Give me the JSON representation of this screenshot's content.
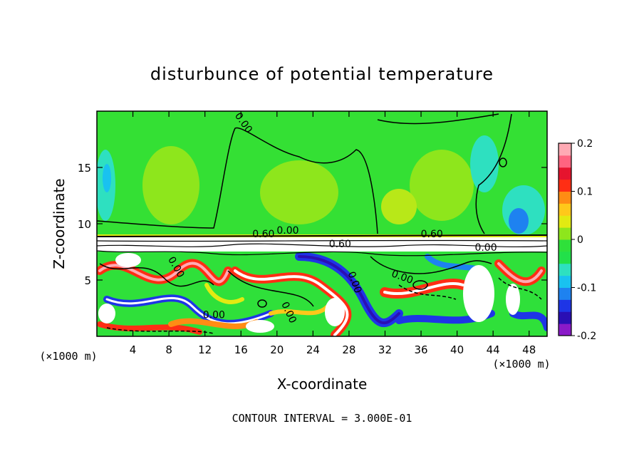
{
  "chart_data": {
    "type": "heatmap",
    "title": "disturbunce of potential temperature",
    "xlabel": "X-coordinate",
    "ylabel": "Z-coordinate",
    "x_unit_label": "(×1000 m)",
    "y_unit_label": "(×1000 m)",
    "xlim": [
      0,
      50
    ],
    "ylim": [
      0,
      20
    ],
    "x_ticks": [
      4,
      8,
      12,
      16,
      20,
      24,
      28,
      32,
      36,
      40,
      44,
      48
    ],
    "y_ticks": [
      5,
      10,
      15
    ],
    "colorbar": {
      "range": [
        -0.2,
        0.2
      ],
      "ticks": [
        "0.2",
        "0.1",
        "0",
        "-0.1",
        "-0.2"
      ],
      "tick_values": [
        0.2,
        0.1,
        0,
        -0.1,
        -0.2
      ],
      "colors": [
        "#8a1ac8",
        "#2a0fb4",
        "#1e35e6",
        "#1e82f0",
        "#19c2f0",
        "#2ee0c0",
        "#22e04a",
        "#2fe03a",
        "#8ee61c",
        "#e2ea12",
        "#ffc81a",
        "#ff8c14",
        "#ff2e14",
        "#e6142e",
        "#ff6480",
        "#ffaab4"
      ]
    },
    "contour_labels": [
      {
        "text": "0.00",
        "x": 16.0,
        "z": 18.8,
        "rotate": 55
      },
      {
        "text": "0.60",
        "x": 18.5,
        "z": 8.8,
        "rotate": 0
      },
      {
        "text": "0.00",
        "x": 21.2,
        "z": 9.1,
        "rotate": 0
      },
      {
        "text": "0.60",
        "x": 37.2,
        "z": 8.8,
        "rotate": 0
      },
      {
        "text": "0.60",
        "x": 27.0,
        "z": 7.9,
        "rotate": 0
      },
      {
        "text": "0.00",
        "x": 43.2,
        "z": 7.6,
        "rotate": 0
      },
      {
        "text": "0.00",
        "x": 8.5,
        "z": 6.0,
        "rotate": 60
      },
      {
        "text": "0.00",
        "x": 28.3,
        "z": 4.7,
        "rotate": 70
      },
      {
        "text": "0.00",
        "x": 21.0,
        "z": 2.0,
        "rotate": 65
      },
      {
        "text": "0.00",
        "x": 13.0,
        "z": 1.6,
        "rotate": 0
      },
      {
        "text": "0.00",
        "x": 33.8,
        "z": 5.0,
        "rotate": 20
      }
    ],
    "annotation": "CONTOUR INTERVAL = 3.000E-01"
  }
}
